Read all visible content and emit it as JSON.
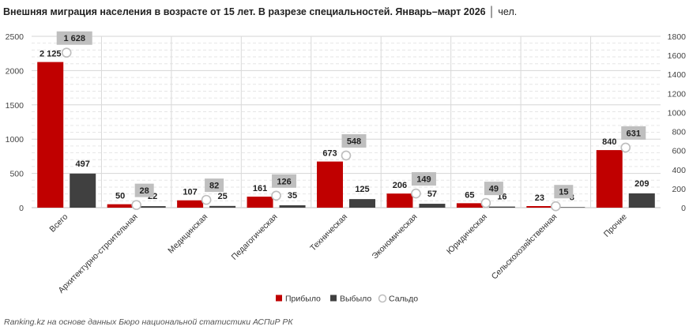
{
  "title": "Внешняя миграция населения в возрасте от 15 лет. В разрезе специальностей. Январь–март 2026",
  "unit": "чел.",
  "source": "Ranking.kz на основе данных Бюро национальной статистики АСПиР РК",
  "colors": {
    "arrived": "#c00000",
    "departed": "#404040",
    "saldo_label_bg": "#bfbfbf"
  },
  "chart_data": {
    "type": "bar",
    "categories": [
      "Всего",
      "Архитектурно-строительная",
      "Медицинская",
      "Педагогическая",
      "Техническая",
      "Экономическая",
      "Юридическая",
      "Сельскохозяйственная",
      "Прочие"
    ],
    "series": [
      {
        "name": "Прибыло",
        "type": "bar",
        "axis": "left",
        "values": [
          2125,
          50,
          107,
          161,
          673,
          206,
          65,
          23,
          840
        ],
        "labels": [
          "2 125",
          "50",
          "107",
          "161",
          "673",
          "206",
          "65",
          "23",
          "840"
        ]
      },
      {
        "name": "Выбыло",
        "type": "bar",
        "axis": "left",
        "values": [
          497,
          22,
          25,
          35,
          125,
          57,
          16,
          8,
          209
        ],
        "labels": [
          "497",
          "22",
          "25",
          "35",
          "125",
          "57",
          "16",
          "8",
          "209"
        ]
      },
      {
        "name": "Сальдо",
        "type": "scatter",
        "axis": "right",
        "values": [
          1628,
          28,
          82,
          126,
          548,
          149,
          49,
          15,
          631
        ],
        "labels": [
          "1 628",
          "28",
          "82",
          "126",
          "548",
          "149",
          "49",
          "15",
          "631"
        ]
      }
    ],
    "y_left": {
      "min": 0,
      "max": 2500,
      "ticks": [
        0,
        500,
        1000,
        1500,
        2000,
        2500
      ]
    },
    "y_right": {
      "min": 0,
      "max": 1800,
      "ticks": [
        0,
        200,
        400,
        600,
        800,
        1000,
        1200,
        1400,
        1600,
        1800
      ]
    },
    "grid": true,
    "legend_position": "bottom"
  }
}
